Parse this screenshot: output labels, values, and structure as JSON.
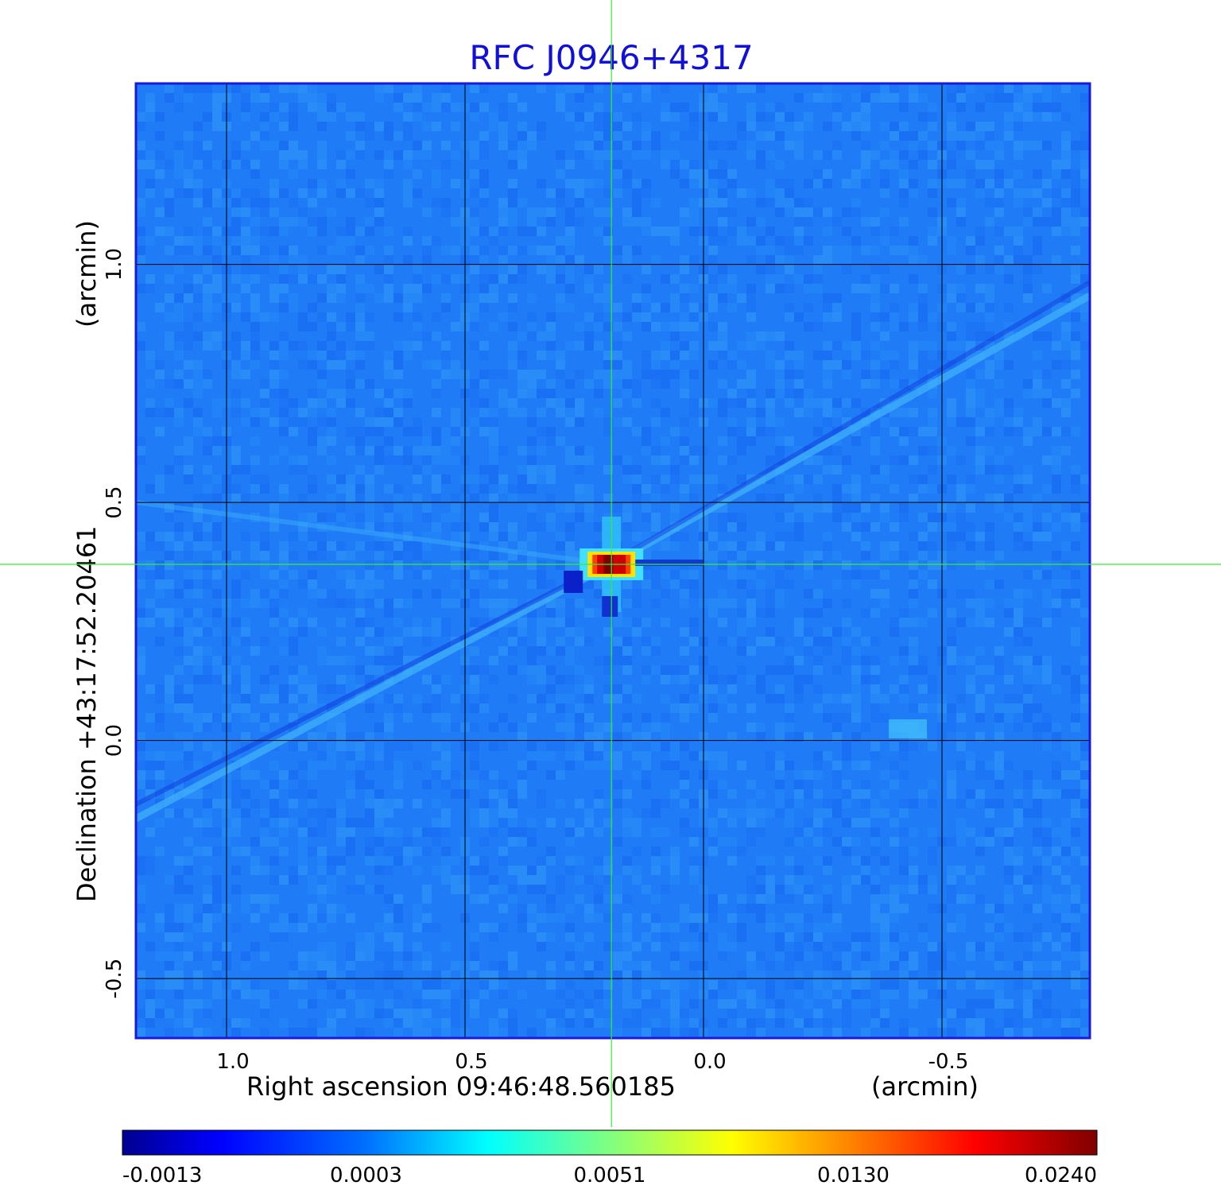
{
  "chart_data": {
    "type": "heatmap",
    "title": "RFC J0946+4317",
    "xlabel": "Right ascension  09:46:48.560185",
    "xlabel_unit": "(arcmin)",
    "ylabel": "Declination  +43:17:52.20461",
    "ylabel_unit": "(arcmin)",
    "xlim": [
      1.19,
      -0.81
    ],
    "ylim": [
      -0.625,
      1.38
    ],
    "x_ticks": [
      1.0,
      0.5,
      0.0,
      -0.5
    ],
    "x_tick_labels": [
      "1.0",
      "0.5",
      "0.0",
      "-0.5"
    ],
    "y_ticks": [
      1.0,
      0.5,
      0.0,
      -0.5
    ],
    "y_tick_labels": [
      "1.0",
      "0.5",
      "0.0",
      "-0.5"
    ],
    "grid": true,
    "crosshair": {
      "x": 0.193,
      "y": 0.37
    },
    "source_peak": {
      "x": 0.193,
      "y": 0.37,
      "value": 0.024
    },
    "colormap": "jet",
    "colorbar": {
      "tick_labels": [
        "-0.0013",
        "0.0003",
        "0.0051",
        "0.0130",
        "0.0240"
      ],
      "orientation": "horizontal",
      "placement": "bottom"
    },
    "colors": {
      "grid": "#000000",
      "frame": "#1a1adc",
      "crosshair": "#33ee33",
      "background": "#1f7cf6",
      "title": "#1010d8"
    }
  }
}
